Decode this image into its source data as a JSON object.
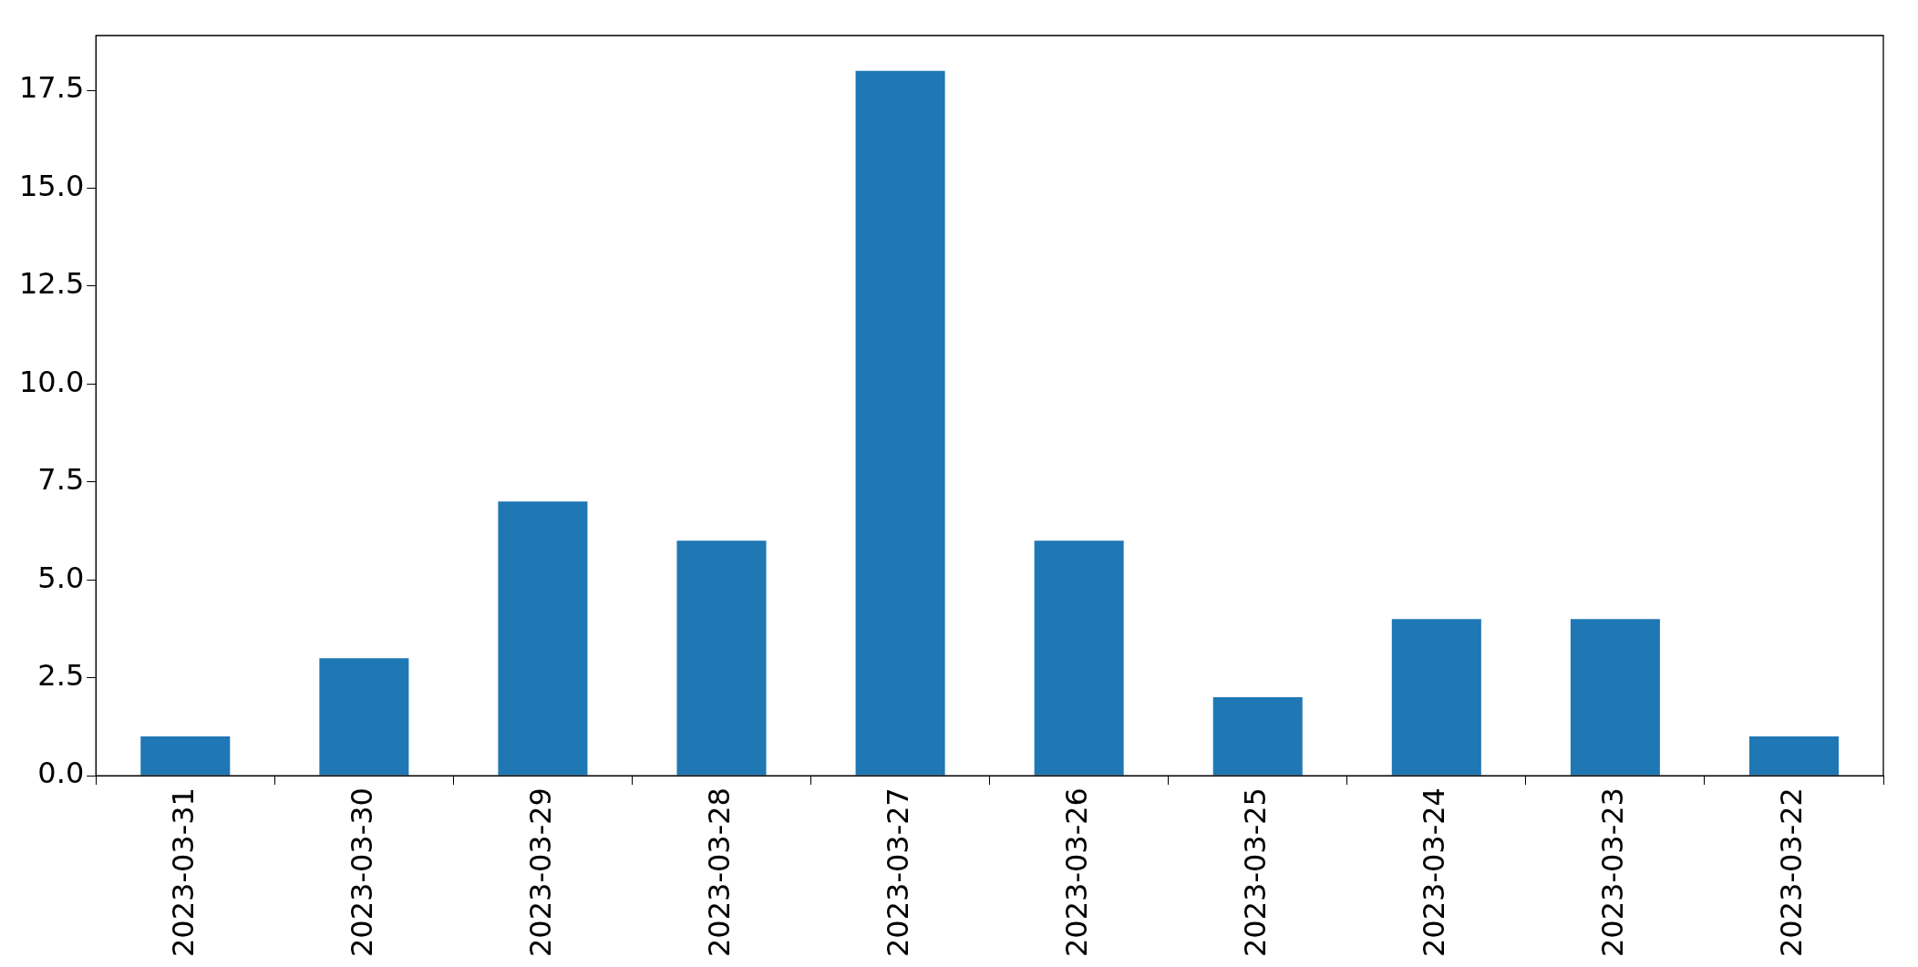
{
  "chart_data": {
    "type": "bar",
    "categories": [
      "2023-03-31",
      "2023-03-30",
      "2023-03-29",
      "2023-03-28",
      "2023-03-27",
      "2023-03-26",
      "2023-03-25",
      "2023-03-24",
      "2023-03-23",
      "2023-03-22"
    ],
    "values": [
      1,
      3,
      7,
      6,
      18,
      6,
      2,
      4,
      4,
      1
    ],
    "color": "#1f77b4",
    "ylim": [
      0,
      18.9
    ],
    "yticks": [
      {
        "value": 0,
        "label": "0.0"
      },
      {
        "value": 2.5,
        "label": "2.5"
      },
      {
        "value": 5,
        "label": "5.0"
      },
      {
        "value": 7.5,
        "label": "7.5"
      },
      {
        "value": 10,
        "label": "10.0"
      },
      {
        "value": 12.5,
        "label": "12.5"
      },
      {
        "value": 15,
        "label": "15.0"
      },
      {
        "value": 17.5,
        "label": "17.5"
      }
    ]
  }
}
